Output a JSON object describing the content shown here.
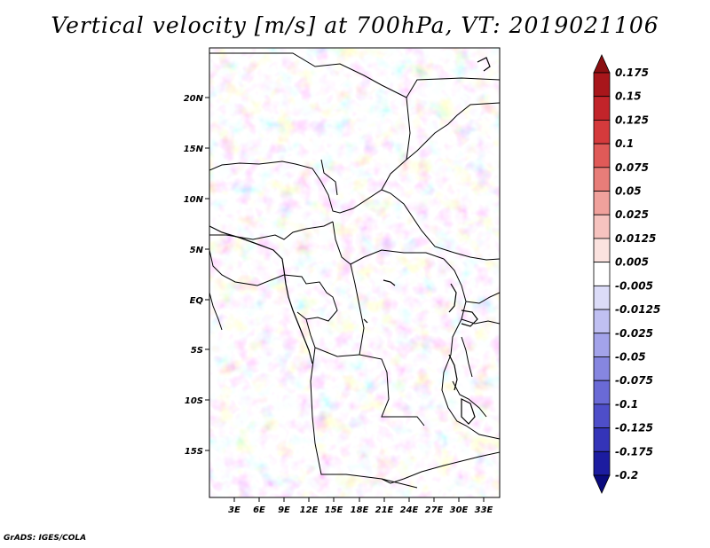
{
  "title": "Vertical velocity [m/s] at 700hPa, VT: 2019021106",
  "credit": "GrADS: IGES/COLA",
  "lat_labels": [
    "20N",
    "15N",
    "10N",
    "5N",
    "EQ",
    "5S",
    "10S",
    "15S"
  ],
  "lon_labels": [
    "3E",
    "6E",
    "9E",
    "12E",
    "15E",
    "18E",
    "21E",
    "24E",
    "27E",
    "30E",
    "33E"
  ],
  "colorbar": {
    "labels": [
      "0.175",
      "0.15",
      "0.125",
      "0.1",
      "0.075",
      "0.05",
      "0.025",
      "0.0125",
      "0.005",
      "-0.005",
      "-0.0125",
      "-0.025",
      "-0.05",
      "-0.075",
      "-0.1",
      "-0.125",
      "-0.175",
      "-0.2"
    ],
    "colors": [
      "#8b0f12",
      "#a8161b",
      "#c2242a",
      "#d53a3c",
      "#e05a58",
      "#e87d79",
      "#f0a19c",
      "#f6c3bf",
      "#fbe2df",
      "#ffffff",
      "#dcdcf8",
      "#c0c0f2",
      "#a3a3ea",
      "#8686e0",
      "#6a6ad6",
      "#4e4ec9",
      "#3434b8",
      "#1c1ca0",
      "#0b0b7e"
    ]
  }
}
